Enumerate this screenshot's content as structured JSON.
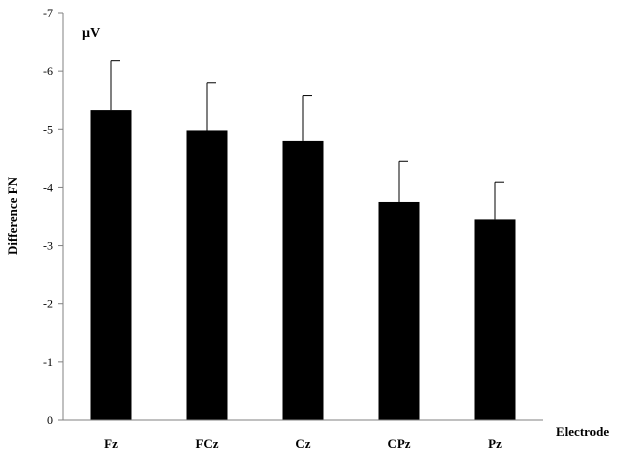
{
  "chart_data": {
    "type": "bar",
    "title": "",
    "unit_label": "µV",
    "xlabel": "Electrode",
    "ylabel": "Difference FN",
    "ylim": [
      0,
      -7
    ],
    "y_inverted": true,
    "y_ticks": [
      0,
      -1,
      -2,
      -3,
      -4,
      -5,
      -6,
      -7
    ],
    "grid": false,
    "legend": "none",
    "bar_color": "#000000",
    "categories": [
      "Fz",
      "FCz",
      "Cz",
      "CPz",
      "Pz"
    ],
    "values": [
      -5.33,
      -4.98,
      -4.8,
      -3.75,
      -3.45
    ],
    "error": [
      0.85,
      0.82,
      0.78,
      0.7,
      0.64
    ]
  }
}
